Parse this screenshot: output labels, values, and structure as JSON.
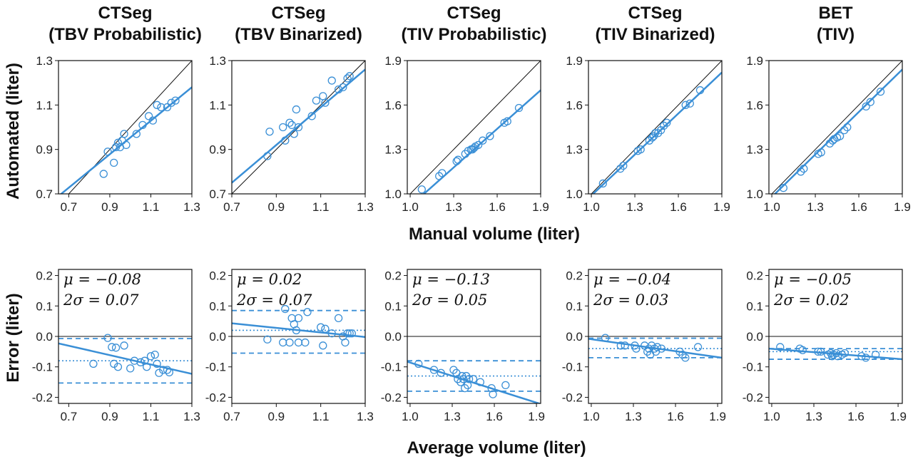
{
  "figure": {
    "top_ylabel": "Automated (liter)",
    "top_xlabel": "Manual volume (liter)",
    "bottom_ylabel": "Error (liter)",
    "bottom_xlabel": "Average volume (liter)"
  },
  "chart_data": [
    {
      "type": "scatter",
      "row": "agreement",
      "title": [
        "CTSeg",
        "(TBV Probabilistic)"
      ],
      "xlim": [
        0.65,
        1.3
      ],
      "ylim": [
        0.7,
        1.3
      ],
      "xticks": [
        "0.7",
        "0.9",
        "1.1",
        "1.3"
      ],
      "yticks": [
        "0.7",
        "0.9",
        "1.1",
        "1.3"
      ],
      "identity_line": true,
      "fit_line": [
        [
          0.65,
          0.69
        ],
        [
          1.3,
          1.18
        ]
      ],
      "points": [
        [
          0.87,
          0.79
        ],
        [
          0.89,
          0.89
        ],
        [
          0.92,
          0.84
        ],
        [
          0.93,
          0.91
        ],
        [
          0.94,
          0.93
        ],
        [
          0.95,
          0.91
        ],
        [
          0.97,
          0.97
        ],
        [
          0.98,
          0.92
        ],
        [
          1.03,
          0.97
        ],
        [
          1.06,
          1.01
        ],
        [
          1.09,
          1.05
        ],
        [
          1.11,
          1.03
        ],
        [
          1.13,
          1.1
        ],
        [
          1.15,
          1.09
        ],
        [
          1.18,
          1.09
        ],
        [
          1.2,
          1.11
        ],
        [
          1.22,
          1.12
        ],
        [
          0.96,
          0.94
        ]
      ]
    },
    {
      "type": "scatter",
      "row": "agreement",
      "title": [
        "CTSeg",
        "(TBV Binarized)"
      ],
      "xlim": [
        0.7,
        1.3
      ],
      "ylim": [
        0.7,
        1.3
      ],
      "xticks": [
        "0.7",
        "0.9",
        "1.1",
        "1.3"
      ],
      "yticks": [
        "0.7",
        "0.9",
        "1.1",
        "1.3"
      ],
      "identity_line": true,
      "fit_line": [
        [
          0.7,
          0.75
        ],
        [
          1.3,
          1.26
        ]
      ],
      "points": [
        [
          0.86,
          0.87
        ],
        [
          0.87,
          0.98
        ],
        [
          0.93,
          1.0
        ],
        [
          0.94,
          0.94
        ],
        [
          0.96,
          1.02
        ],
        [
          0.97,
          1.01
        ],
        [
          0.98,
          0.97
        ],
        [
          0.99,
          1.08
        ],
        [
          1.0,
          1.0
        ],
        [
          1.06,
          1.05
        ],
        [
          1.08,
          1.12
        ],
        [
          1.11,
          1.14
        ],
        [
          1.12,
          1.11
        ],
        [
          1.15,
          1.21
        ],
        [
          1.18,
          1.17
        ],
        [
          1.2,
          1.18
        ],
        [
          1.22,
          1.22
        ],
        [
          1.23,
          1.23
        ]
      ]
    },
    {
      "type": "scatter",
      "row": "agreement",
      "title": [
        "CTSeg",
        "(TIV Probabilistic)"
      ],
      "xlim": [
        0.98,
        1.9
      ],
      "ylim": [
        1.0,
        1.9
      ],
      "xticks": [
        "1.0",
        "1.3",
        "1.6",
        "1.9"
      ],
      "yticks": [
        "1.0",
        "1.3",
        "1.6",
        "1.9"
      ],
      "identity_line": true,
      "fit_line": [
        [
          0.98,
          0.9
        ],
        [
          1.9,
          1.7
        ]
      ],
      "points": [
        [
          1.08,
          1.03
        ],
        [
          1.2,
          1.12
        ],
        [
          1.22,
          1.14
        ],
        [
          1.32,
          1.22
        ],
        [
          1.33,
          1.23
        ],
        [
          1.38,
          1.27
        ],
        [
          1.4,
          1.29
        ],
        [
          1.42,
          1.3
        ],
        [
          1.43,
          1.3
        ],
        [
          1.44,
          1.31
        ],
        [
          1.45,
          1.32
        ],
        [
          1.47,
          1.33
        ],
        [
          1.5,
          1.36
        ],
        [
          1.55,
          1.39
        ],
        [
          1.65,
          1.48
        ],
        [
          1.67,
          1.49
        ],
        [
          1.75,
          1.58
        ]
      ]
    },
    {
      "type": "scatter",
      "row": "agreement",
      "title": [
        "CTSeg",
        "(TIV Binarized)"
      ],
      "xlim": [
        0.98,
        1.9
      ],
      "ylim": [
        1.0,
        1.9
      ],
      "xticks": [
        "1.0",
        "1.3",
        "1.6",
        "1.9"
      ],
      "yticks": [
        "1.0",
        "1.3",
        "1.6",
        "1.9"
      ],
      "identity_line": true,
      "fit_line": [
        [
          0.98,
          0.97
        ],
        [
          1.9,
          1.82
        ]
      ],
      "points": [
        [
          1.08,
          1.07
        ],
        [
          1.2,
          1.17
        ],
        [
          1.22,
          1.19
        ],
        [
          1.32,
          1.29
        ],
        [
          1.34,
          1.3
        ],
        [
          1.4,
          1.36
        ],
        [
          1.42,
          1.38
        ],
        [
          1.43,
          1.39
        ],
        [
          1.44,
          1.41
        ],
        [
          1.46,
          1.41
        ],
        [
          1.48,
          1.43
        ],
        [
          1.5,
          1.46
        ],
        [
          1.52,
          1.48
        ],
        [
          1.65,
          1.6
        ],
        [
          1.68,
          1.61
        ],
        [
          1.75,
          1.7
        ]
      ]
    },
    {
      "type": "scatter",
      "row": "agreement",
      "title": [
        "BET",
        "(TIV)"
      ],
      "xlim": [
        0.98,
        1.9
      ],
      "ylim": [
        1.0,
        1.9
      ],
      "xticks": [
        "1.0",
        "1.3",
        "1.6",
        "1.9"
      ],
      "yticks": [
        "1.0",
        "1.3",
        "1.6",
        "1.9"
      ],
      "identity_line": true,
      "fit_line": [
        [
          0.98,
          0.96
        ],
        [
          1.9,
          1.84
        ]
      ],
      "points": [
        [
          1.08,
          1.04
        ],
        [
          1.2,
          1.15
        ],
        [
          1.22,
          1.17
        ],
        [
          1.32,
          1.27
        ],
        [
          1.34,
          1.28
        ],
        [
          1.4,
          1.34
        ],
        [
          1.42,
          1.36
        ],
        [
          1.43,
          1.37
        ],
        [
          1.45,
          1.38
        ],
        [
          1.47,
          1.39
        ],
        [
          1.5,
          1.43
        ],
        [
          1.52,
          1.45
        ],
        [
          1.65,
          1.59
        ],
        [
          1.68,
          1.62
        ],
        [
          1.75,
          1.69
        ]
      ]
    },
    {
      "type": "scatter",
      "row": "bland-altman",
      "stats": [
        "μ = −0.08",
        "2σ = 0.07"
      ],
      "xlim": [
        0.65,
        1.3
      ],
      "ylim": [
        -0.22,
        0.22
      ],
      "xticks": [
        "0.7",
        "0.9",
        "1.1",
        "1.3"
      ],
      "yticks": [
        "0.2",
        "0.1",
        "0.0",
        "-0.1",
        "-0.2"
      ],
      "mean": -0.08,
      "limits": [
        -0.007,
        -0.153
      ],
      "fit_line": [
        [
          0.65,
          -0.023
        ],
        [
          1.3,
          -0.123
        ]
      ],
      "points": [
        [
          0.82,
          -0.09
        ],
        [
          0.89,
          -0.005
        ],
        [
          0.91,
          -0.035
        ],
        [
          0.92,
          -0.09
        ],
        [
          0.93,
          -0.037
        ],
        [
          0.94,
          -0.1
        ],
        [
          0.97,
          -0.03
        ],
        [
          1.0,
          -0.105
        ],
        [
          1.02,
          -0.08
        ],
        [
          1.05,
          -0.085
        ],
        [
          1.07,
          -0.08
        ],
        [
          1.08,
          -0.1
        ],
        [
          1.1,
          -0.065
        ],
        [
          1.12,
          -0.06
        ],
        [
          1.13,
          -0.09
        ],
        [
          1.14,
          -0.12
        ],
        [
          1.16,
          -0.11
        ],
        [
          1.18,
          -0.11
        ],
        [
          1.19,
          -0.118
        ]
      ]
    },
    {
      "type": "scatter",
      "row": "bland-altman",
      "stats": [
        "μ = 0.02",
        "2σ = 0.07"
      ],
      "xlim": [
        0.7,
        1.3
      ],
      "ylim": [
        -0.22,
        0.22
      ],
      "xticks": [
        "0.7",
        "0.9",
        "1.1",
        "1.3"
      ],
      "yticks": [
        "0.2",
        "0.1",
        "0.0",
        "-0.1",
        "-0.2"
      ],
      "mean": 0.02,
      "limits": [
        0.085,
        -0.055
      ],
      "fit_line": [
        [
          0.7,
          0.043
        ],
        [
          1.3,
          -0.002
        ]
      ],
      "points": [
        [
          0.86,
          -0.01
        ],
        [
          0.93,
          -0.02
        ],
        [
          0.94,
          0.09
        ],
        [
          0.96,
          -0.02
        ],
        [
          0.97,
          0.06
        ],
        [
          0.98,
          0.04
        ],
        [
          0.99,
          0.02
        ],
        [
          1.0,
          -0.02
        ],
        [
          1.0,
          0.06
        ],
        [
          1.03,
          -0.02
        ],
        [
          1.04,
          0.08
        ],
        [
          1.1,
          0.03
        ],
        [
          1.11,
          -0.03
        ],
        [
          1.12,
          0.025
        ],
        [
          1.15,
          0.01
        ],
        [
          1.18,
          0.06
        ],
        [
          1.2,
          0.0
        ],
        [
          1.21,
          -0.02
        ],
        [
          1.22,
          0.01
        ],
        [
          1.23,
          0.01
        ],
        [
          1.24,
          0.01
        ]
      ]
    },
    {
      "type": "scatter",
      "row": "bland-altman",
      "stats": [
        "μ = −0.13",
        "2σ = 0.05"
      ],
      "xlim": [
        0.98,
        1.93
      ],
      "ylim": [
        -0.22,
        0.22
      ],
      "xticks": [
        "1.0",
        "1.3",
        "1.6",
        "1.9"
      ],
      "yticks": [
        "0.2",
        "0.1",
        "0.0",
        "-0.1",
        "-0.2"
      ],
      "mean": -0.13,
      "limits": [
        -0.08,
        -0.18
      ],
      "fit_line": [
        [
          0.98,
          -0.083
        ],
        [
          1.93,
          -0.222
        ]
      ],
      "points": [
        [
          1.06,
          -0.09
        ],
        [
          1.17,
          -0.11
        ],
        [
          1.22,
          -0.12
        ],
        [
          1.31,
          -0.11
        ],
        [
          1.33,
          -0.12
        ],
        [
          1.34,
          -0.14
        ],
        [
          1.36,
          -0.15
        ],
        [
          1.37,
          -0.13
        ],
        [
          1.38,
          -0.14
        ],
        [
          1.39,
          -0.17
        ],
        [
          1.4,
          -0.13
        ],
        [
          1.41,
          -0.16
        ],
        [
          1.42,
          -0.14
        ],
        [
          1.45,
          -0.14
        ],
        [
          1.5,
          -0.15
        ],
        [
          1.58,
          -0.17
        ],
        [
          1.59,
          -0.19
        ],
        [
          1.68,
          -0.16
        ]
      ]
    },
    {
      "type": "scatter",
      "row": "bland-altman",
      "stats": [
        "μ = −0.04",
        "2σ = 0.03"
      ],
      "xlim": [
        0.98,
        1.93
      ],
      "ylim": [
        -0.22,
        0.22
      ],
      "xticks": [
        "1.0",
        "1.3",
        "1.6",
        "1.9"
      ],
      "yticks": [
        "0.2",
        "0.1",
        "0.0",
        "-0.1",
        "-0.2"
      ],
      "mean": -0.04,
      "limits": [
        -0.006,
        -0.07
      ],
      "fit_line": [
        [
          0.98,
          -0.008
        ],
        [
          1.93,
          -0.07
        ]
      ],
      "points": [
        [
          1.1,
          -0.005
        ],
        [
          1.21,
          -0.03
        ],
        [
          1.24,
          -0.03
        ],
        [
          1.31,
          -0.03
        ],
        [
          1.32,
          -0.04
        ],
        [
          1.38,
          -0.03
        ],
        [
          1.4,
          -0.05
        ],
        [
          1.41,
          -0.04
        ],
        [
          1.42,
          -0.06
        ],
        [
          1.43,
          -0.03
        ],
        [
          1.45,
          -0.04
        ],
        [
          1.46,
          -0.05
        ],
        [
          1.47,
          -0.035
        ],
        [
          1.5,
          -0.04
        ],
        [
          1.63,
          -0.05
        ],
        [
          1.65,
          -0.06
        ],
        [
          1.67,
          -0.07
        ],
        [
          1.76,
          -0.035
        ]
      ]
    },
    {
      "type": "scatter",
      "row": "bland-altman",
      "stats": [
        "μ = −0.05",
        "2σ = 0.02"
      ],
      "xlim": [
        0.98,
        1.93
      ],
      "ylim": [
        -0.22,
        0.22
      ],
      "xticks": [
        "1.0",
        "1.3",
        "1.6",
        "1.9"
      ],
      "yticks": [
        "0.2",
        "0.1",
        "0.0",
        "-0.1",
        "-0.2"
      ],
      "mean": -0.05,
      "limits": [
        -0.04,
        -0.075
      ],
      "fit_line": [
        [
          0.98,
          -0.04
        ],
        [
          1.93,
          -0.075
        ]
      ],
      "points": [
        [
          1.06,
          -0.035
        ],
        [
          1.2,
          -0.04
        ],
        [
          1.22,
          -0.045
        ],
        [
          1.33,
          -0.05
        ],
        [
          1.35,
          -0.05
        ],
        [
          1.4,
          -0.06
        ],
        [
          1.42,
          -0.055
        ],
        [
          1.43,
          -0.065
        ],
        [
          1.44,
          -0.06
        ],
        [
          1.46,
          -0.055
        ],
        [
          1.47,
          -0.065
        ],
        [
          1.5,
          -0.06
        ],
        [
          1.52,
          -0.055
        ],
        [
          1.64,
          -0.065
        ],
        [
          1.67,
          -0.07
        ],
        [
          1.74,
          -0.06
        ]
      ]
    }
  ]
}
